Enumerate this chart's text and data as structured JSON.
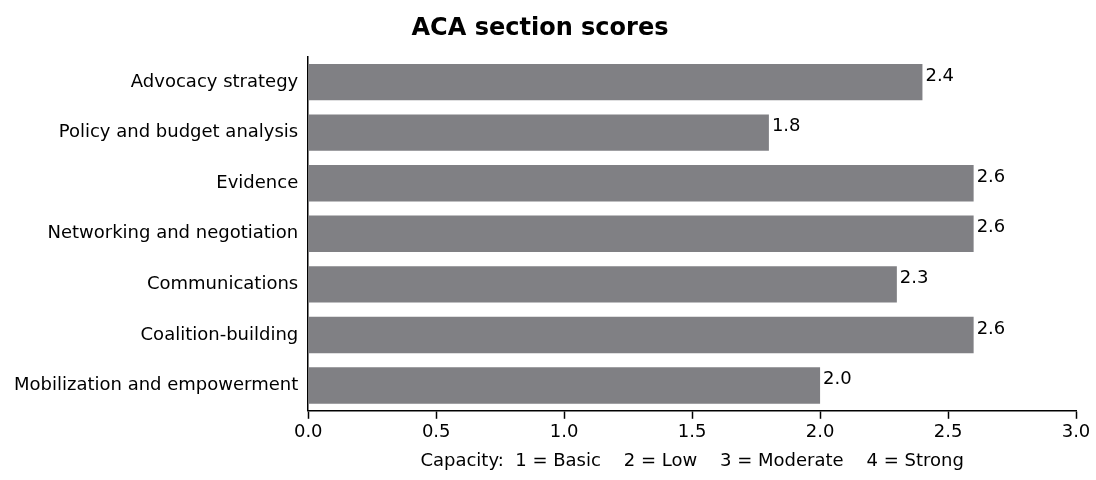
{
  "chart_data": {
    "type": "bar",
    "orientation": "horizontal",
    "title": "ACA section scores",
    "xlabel": "Capacity:  1 = Basic    2 = Low    3 = Moderate    4 = Strong",
    "categories": [
      "Advocacy strategy",
      "Policy and budget analysis",
      "Evidence",
      "Networking and negotiation",
      "Communications",
      "Coalition-building",
      "Mobilization and empowerment"
    ],
    "values": [
      2.4,
      1.8,
      2.6,
      2.6,
      2.3,
      2.6,
      2.0
    ],
    "value_labels": [
      "2.4",
      "1.8",
      "2.6",
      "2.6",
      "2.3",
      "2.6",
      "2.0"
    ],
    "color": "#808084",
    "xlim": [
      0,
      3
    ],
    "xticks": [
      {
        "value": 0,
        "label": "0.0"
      },
      {
        "value": 0.5,
        "label": "0.5"
      },
      {
        "value": 1,
        "label": "1.0"
      },
      {
        "value": 1.5,
        "label": "1.5"
      },
      {
        "value": 2,
        "label": "2.0"
      },
      {
        "value": 2.5,
        "label": "2.5"
      },
      {
        "value": 3,
        "label": "3.0"
      }
    ],
    "grid": false,
    "legend": false
  }
}
